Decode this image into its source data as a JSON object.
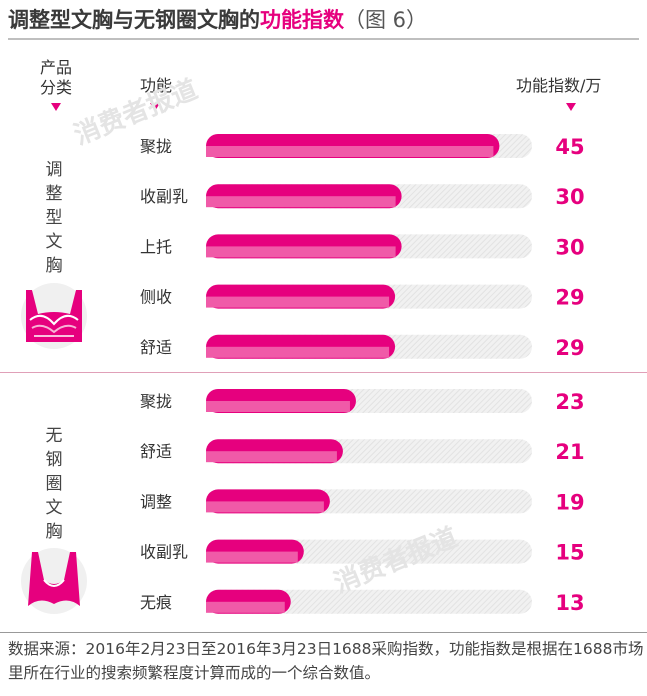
{
  "header": {
    "title_main": "调整型文胸与无钢圈文胸的",
    "title_highlight": "功能指数",
    "title_fig": "（图 6）"
  },
  "columns": {
    "category_line1": "产品",
    "category_line2": "分类",
    "function": "功能",
    "index": "功能指数/万"
  },
  "groups": [
    {
      "name_chars": [
        "调",
        "整",
        "型",
        "文",
        "胸"
      ]
    },
    {
      "name_chars": [
        "无",
        "钢",
        "圈",
        "文",
        "胸"
      ]
    }
  ],
  "watermark": "消费者报道",
  "colors": {
    "accent": "#e6007e",
    "accent_light": "#f05aa8",
    "track": "#e2e2e2"
  },
  "footnote": "数据来源：2016年2月23日至2016年3月23日1688采购指数，功能指数是根据在1688市场里所在行业的搜索频繁程度计算而成的一个综合数值。",
  "chart_data": [
    {
      "type": "bar",
      "orientation": "horizontal",
      "group": "调整型文胸",
      "categories": [
        "聚拢",
        "收副乳",
        "上托",
        "侧收",
        "舒适"
      ],
      "values": [
        45,
        30,
        30,
        29,
        29
      ],
      "xlim": [
        0,
        50
      ]
    },
    {
      "type": "bar",
      "orientation": "horizontal",
      "group": "无钢圈文胸",
      "categories": [
        "聚拢",
        "舒适",
        "调整",
        "收副乳",
        "无痕"
      ],
      "values": [
        23,
        21,
        19,
        15,
        13
      ],
      "xlim": [
        0,
        50
      ]
    }
  ]
}
